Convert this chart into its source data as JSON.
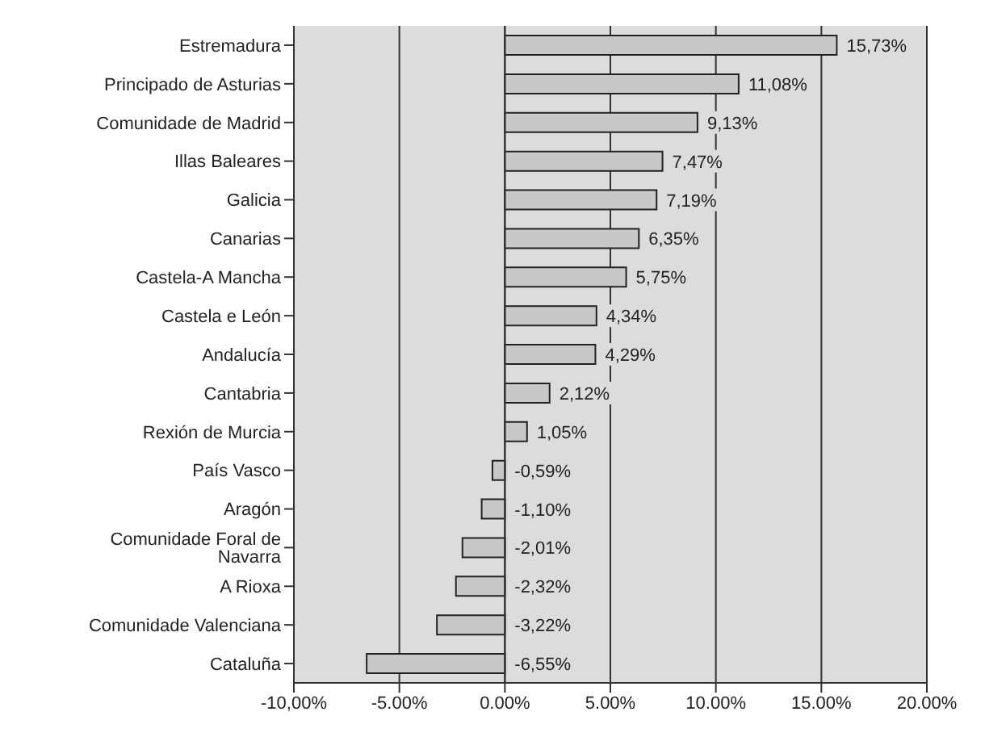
{
  "chart_data": {
    "type": "bar",
    "orientation": "horizontal",
    "categories": [
      "Estremadura",
      "Principado de Asturias",
      "Comunidade de Madrid",
      "Illas Baleares",
      "Galicia",
      "Canarias",
      "Castela-A Mancha",
      "Castela e León",
      "Andalucía",
      "Cantabria",
      "Rexión de Murcia",
      "País Vasco",
      "Aragón",
      "Comunidade Foral de Navarra",
      "A Rioxa",
      "Comunidade Valenciana",
      "Cataluña"
    ],
    "values": [
      15.73,
      11.08,
      9.13,
      7.47,
      7.19,
      6.35,
      5.75,
      4.34,
      4.29,
      2.12,
      1.05,
      -0.59,
      -1.1,
      -2.01,
      -2.32,
      -3.22,
      -6.55
    ],
    "value_labels": [
      "15,73%",
      "11,08%",
      "9,13%",
      "7,47%",
      "7,19%",
      "6,35%",
      "5,75%",
      "4,34%",
      "4,29%",
      "2,12%",
      "1,05%",
      "-0,59%",
      "-1,10%",
      "-2,01%",
      "-2,32%",
      "-3,22%",
      "-6,55%"
    ],
    "color": "#c8c8c8",
    "xlim": [
      -10,
      20
    ],
    "xticks": [
      {
        "value": -10,
        "label": "-10,00%"
      },
      {
        "value": -5,
        "label": "-5.00%"
      },
      {
        "value": 0,
        "label": "0.00%"
      },
      {
        "value": 5,
        "label": "5.00%"
      },
      {
        "value": 10,
        "label": "10.00%"
      },
      {
        "value": 15,
        "label": "15.00%"
      },
      {
        "value": 20,
        "label": "20.00%"
      }
    ],
    "grid": "x",
    "legend": false
  }
}
